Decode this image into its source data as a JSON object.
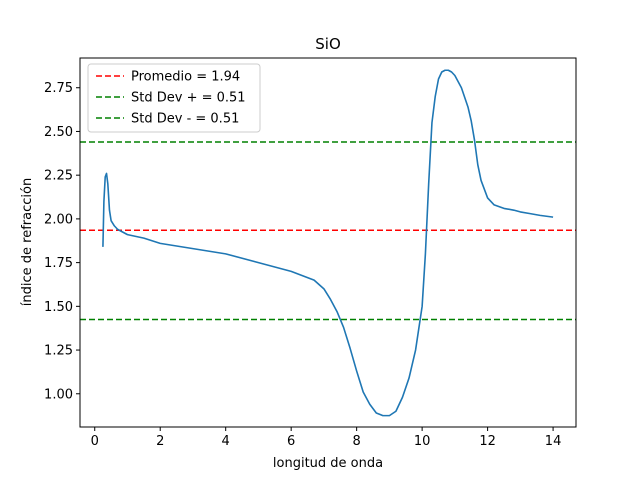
{
  "chart_data": {
    "type": "line",
    "title": "SiO",
    "xlabel": "longitud de onda",
    "ylabel": "índice de refracción",
    "xlim": [
      -0.45,
      14.7
    ],
    "ylim": [
      0.81,
      2.92
    ],
    "xticks": [
      0,
      2,
      4,
      6,
      8,
      10,
      12,
      14
    ],
    "xtick_labels": [
      "0",
      "2",
      "4",
      "6",
      "8",
      "10",
      "12",
      "14"
    ],
    "yticks": [
      1.0,
      1.25,
      1.5,
      1.75,
      2.0,
      2.25,
      2.5,
      2.75
    ],
    "ytick_labels": [
      "1.00",
      "1.25",
      "1.50",
      "1.75",
      "2.00",
      "2.25",
      "2.50",
      "2.75"
    ],
    "grid": false,
    "legend_position": "top-left",
    "series": [
      {
        "color": "#1f77b4",
        "x": [
          0.25,
          0.28,
          0.32,
          0.36,
          0.4,
          0.45,
          0.5,
          0.6,
          0.7,
          0.8,
          1.0,
          1.5,
          2.0,
          3.0,
          4.0,
          5.0,
          6.0,
          6.7,
          7.0,
          7.2,
          7.4,
          7.6,
          7.8,
          8.0,
          8.2,
          8.4,
          8.6,
          8.8,
          9.0,
          9.2,
          9.4,
          9.6,
          9.8,
          10.0,
          10.1,
          10.2,
          10.3,
          10.4,
          10.5,
          10.6,
          10.7,
          10.8,
          10.9,
          11.0,
          11.2,
          11.4,
          11.5,
          11.6,
          11.7,
          11.8,
          12.0,
          12.2,
          12.5,
          12.8,
          13.0,
          13.3,
          13.6,
          14.0
        ],
        "y": [
          1.84,
          2.1,
          2.24,
          2.26,
          2.2,
          2.05,
          1.99,
          1.96,
          1.94,
          1.93,
          1.91,
          1.89,
          1.86,
          1.83,
          1.8,
          1.75,
          1.7,
          1.65,
          1.6,
          1.54,
          1.47,
          1.38,
          1.26,
          1.13,
          1.01,
          0.94,
          0.89,
          0.875,
          0.875,
          0.9,
          0.98,
          1.09,
          1.25,
          1.5,
          1.8,
          2.2,
          2.55,
          2.7,
          2.8,
          2.84,
          2.85,
          2.85,
          2.84,
          2.82,
          2.75,
          2.64,
          2.56,
          2.45,
          2.31,
          2.22,
          2.12,
          2.08,
          2.06,
          2.05,
          2.04,
          2.03,
          2.02,
          2.01
        ]
      }
    ],
    "reference_lines": [
      {
        "label": "Promedio = 1.94",
        "y": 1.935,
        "color": "#ff0000"
      },
      {
        "label": "Std Dev + = 0.51",
        "y": 2.44,
        "color": "#008000"
      },
      {
        "label": "Std Dev - = 0.51",
        "y": 1.425,
        "color": "#008000"
      }
    ]
  }
}
